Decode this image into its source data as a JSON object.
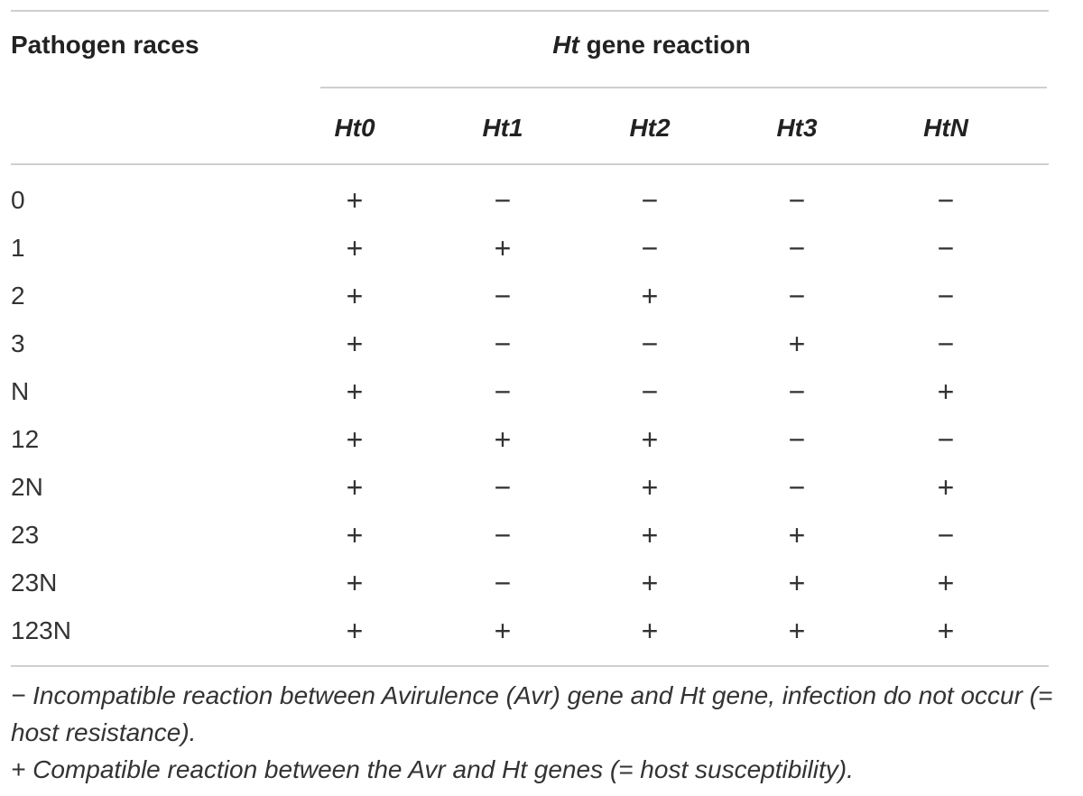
{
  "header": {
    "first": "Pathogen races",
    "group_italic": "Ht",
    "group_rest": "gene reaction"
  },
  "columns": [
    "Ht0",
    "Ht1",
    "Ht2",
    "Ht3",
    "HtN"
  ],
  "table": {
    "rows": [
      [
        "0",
        "+",
        "−",
        "−",
        "−",
        "−"
      ],
      [
        "1",
        "+",
        "+",
        "−",
        "−",
        "−"
      ],
      [
        "2",
        "+",
        "−",
        "+",
        "−",
        "−"
      ],
      [
        "3",
        "+",
        "−",
        "−",
        "+",
        "−"
      ],
      [
        "N",
        "+",
        "−",
        "−",
        "−",
        "+"
      ],
      [
        "12",
        "+",
        "+",
        "+",
        "−",
        "−"
      ],
      [
        "2N",
        "+",
        "−",
        "+",
        "−",
        "+"
      ],
      [
        "23",
        "+",
        "−",
        "+",
        "+",
        "−"
      ],
      [
        "23N",
        "+",
        "−",
        "+",
        "+",
        "+"
      ],
      [
        "123N",
        "+",
        "+",
        "+",
        "+",
        "+"
      ]
    ]
  },
  "footnotes": [
    "− Incompatible reaction between Avirulence (Avr) gene and Ht gene, infection do not occur (= host resistance).",
    "+ Compatible reaction between the Avr and Ht genes (= host susceptibility)."
  ]
}
